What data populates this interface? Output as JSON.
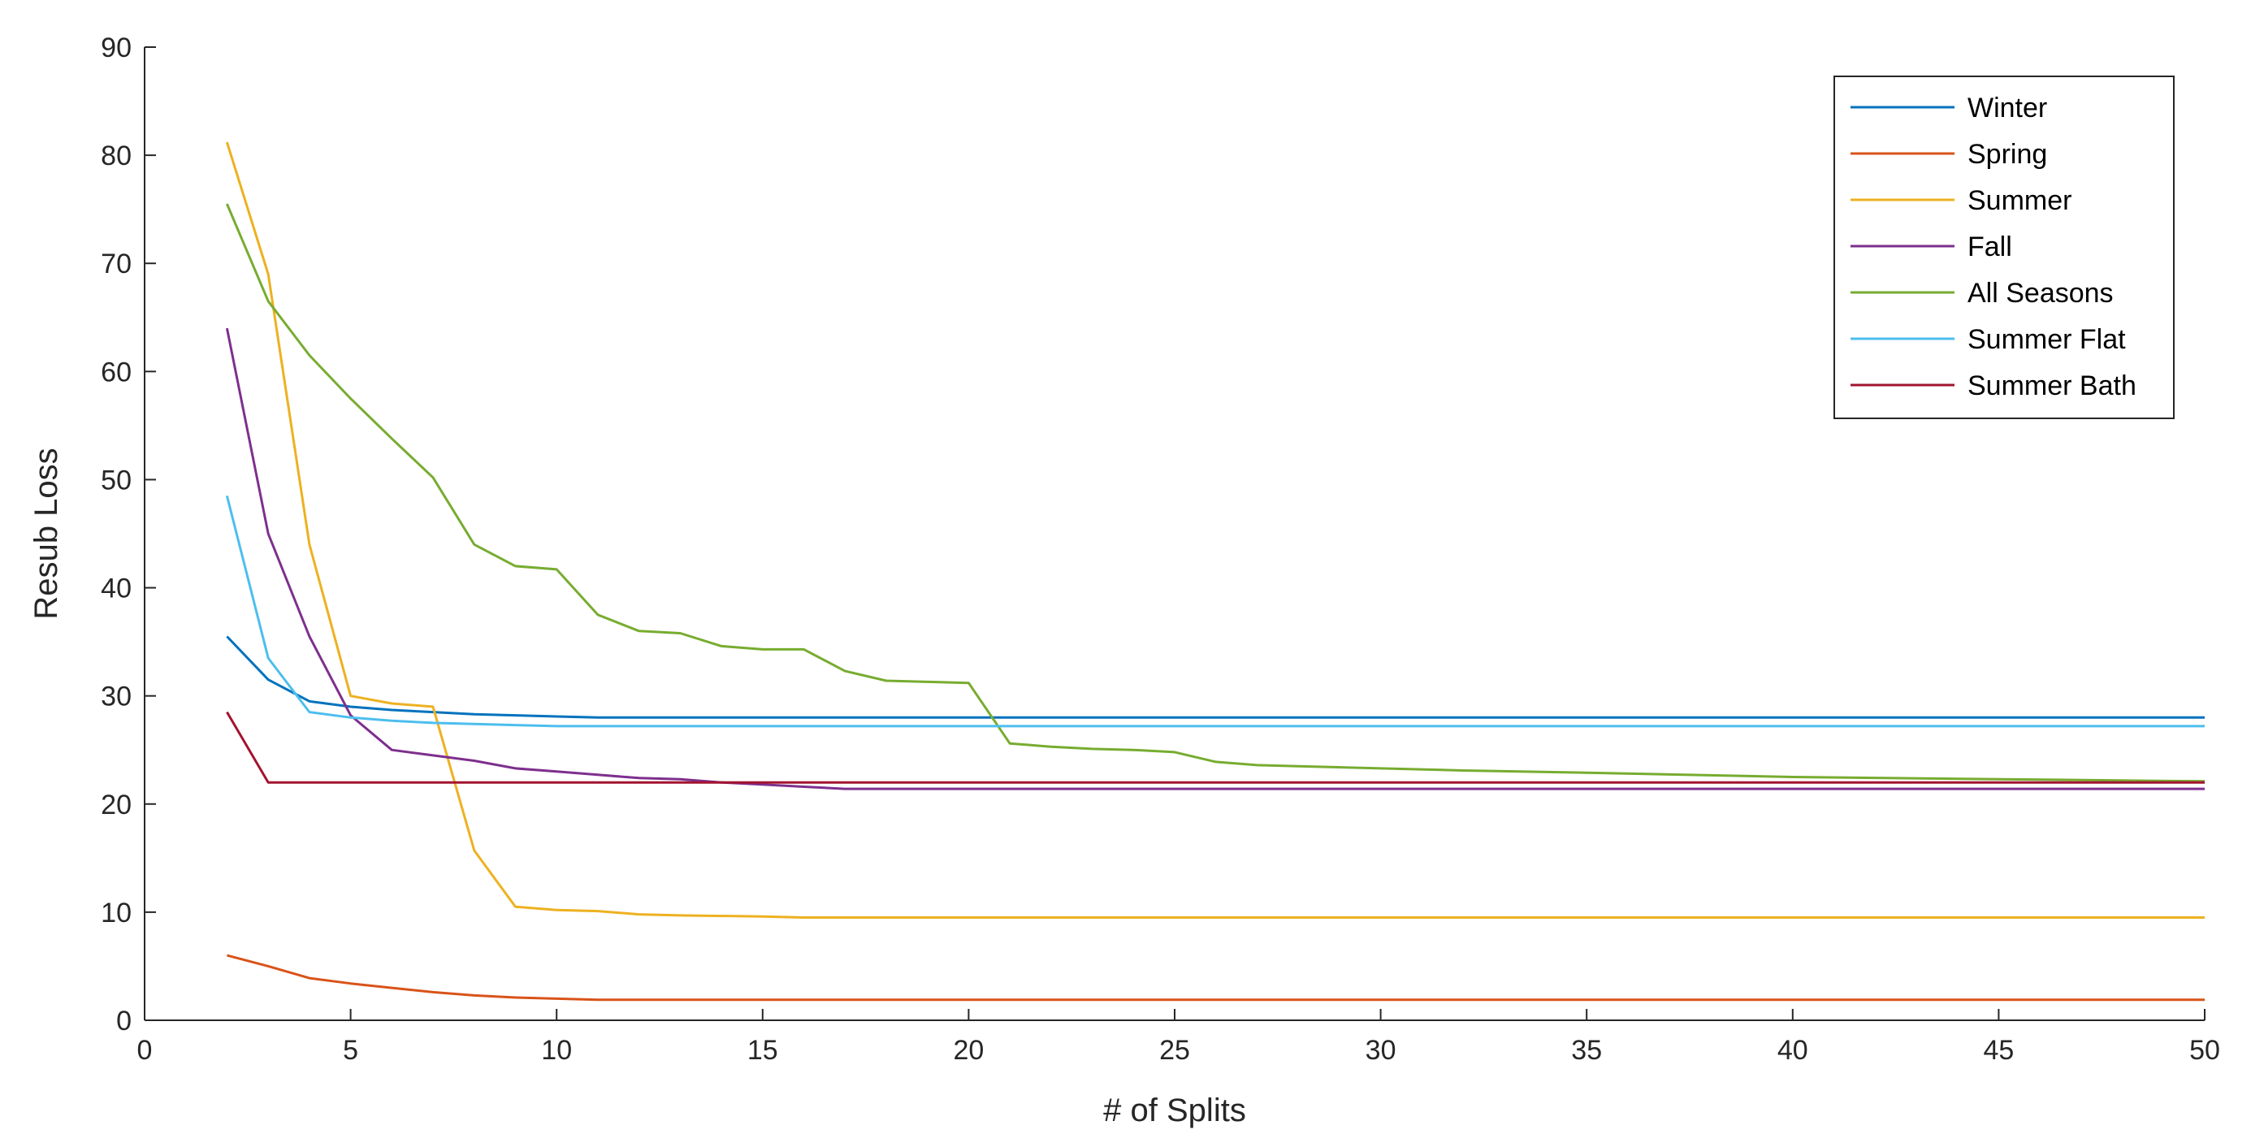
{
  "chart_data": {
    "type": "line",
    "title": "",
    "xlabel": "# of Splits",
    "ylabel": "Resub Loss",
    "xlim": [
      0,
      50
    ],
    "ylim": [
      0,
      90
    ],
    "xticks": [
      0,
      5,
      10,
      15,
      20,
      25,
      30,
      35,
      40,
      45,
      50
    ],
    "yticks": [
      0,
      10,
      20,
      30,
      40,
      50,
      60,
      70,
      80,
      90
    ],
    "grid": false,
    "legend_position": "top-right",
    "series": [
      {
        "name": "Winter",
        "color": "#0072BD",
        "points": [
          [
            2,
            35.5
          ],
          [
            3,
            31.5
          ],
          [
            4,
            29.5
          ],
          [
            5,
            29
          ],
          [
            6,
            28.7
          ],
          [
            7,
            28.5
          ],
          [
            8,
            28.3
          ],
          [
            9,
            28.2
          ],
          [
            10,
            28.1
          ],
          [
            11,
            28
          ],
          [
            12,
            28
          ],
          [
            15,
            28
          ],
          [
            20,
            28
          ],
          [
            25,
            28
          ],
          [
            30,
            28
          ],
          [
            35,
            28
          ],
          [
            40,
            28
          ],
          [
            45,
            28
          ],
          [
            50,
            28
          ]
        ]
      },
      {
        "name": "Spring",
        "color": "#D95319",
        "points": [
          [
            2,
            6
          ],
          [
            3,
            5
          ],
          [
            4,
            3.9
          ],
          [
            5,
            3.4
          ],
          [
            6,
            3
          ],
          [
            7,
            2.6
          ],
          [
            8,
            2.3
          ],
          [
            9,
            2.1
          ],
          [
            10,
            2
          ],
          [
            11,
            1.9
          ],
          [
            12,
            1.9
          ],
          [
            15,
            1.9
          ],
          [
            20,
            1.9
          ],
          [
            25,
            1.9
          ],
          [
            30,
            1.9
          ],
          [
            35,
            1.9
          ],
          [
            40,
            1.9
          ],
          [
            45,
            1.9
          ],
          [
            50,
            1.9
          ]
        ]
      },
      {
        "name": "Summer",
        "color": "#EDB120",
        "points": [
          [
            2,
            81.2
          ],
          [
            3,
            69
          ],
          [
            4,
            44
          ],
          [
            5,
            30
          ],
          [
            6,
            29.3
          ],
          [
            7,
            29
          ],
          [
            8,
            15.7
          ],
          [
            9,
            10.5
          ],
          [
            10,
            10.2
          ],
          [
            11,
            10.1
          ],
          [
            12,
            9.8
          ],
          [
            13,
            9.7
          ],
          [
            15,
            9.6
          ],
          [
            16,
            9.5
          ],
          [
            20,
            9.5
          ],
          [
            25,
            9.5
          ],
          [
            30,
            9.5
          ],
          [
            35,
            9.5
          ],
          [
            40,
            9.5
          ],
          [
            45,
            9.5
          ],
          [
            50,
            9.5
          ]
        ]
      },
      {
        "name": "Fall",
        "color": "#7E2F8E",
        "points": [
          [
            2,
            64
          ],
          [
            3,
            45
          ],
          [
            4,
            35.5
          ],
          [
            5,
            28.2
          ],
          [
            6,
            25
          ],
          [
            7,
            24.5
          ],
          [
            8,
            24
          ],
          [
            9,
            23.3
          ],
          [
            10,
            23
          ],
          [
            11,
            22.7
          ],
          [
            12,
            22.4
          ],
          [
            13,
            22.3
          ],
          [
            14,
            22
          ],
          [
            15,
            21.8
          ],
          [
            16,
            21.6
          ],
          [
            17,
            21.4
          ],
          [
            20,
            21.4
          ],
          [
            25,
            21.4
          ],
          [
            30,
            21.4
          ],
          [
            35,
            21.4
          ],
          [
            40,
            21.4
          ],
          [
            45,
            21.4
          ],
          [
            50,
            21.4
          ]
        ]
      },
      {
        "name": "All Seasons",
        "color": "#77AC30",
        "points": [
          [
            2,
            75.5
          ],
          [
            3,
            66.5
          ],
          [
            4,
            61.5
          ],
          [
            5,
            57.5
          ],
          [
            6,
            53.8
          ],
          [
            7,
            50.2
          ],
          [
            8,
            44
          ],
          [
            9,
            42
          ],
          [
            10,
            41.7
          ],
          [
            11,
            37.5
          ],
          [
            12,
            36
          ],
          [
            13,
            35.8
          ],
          [
            14,
            34.6
          ],
          [
            15,
            34.3
          ],
          [
            16,
            34.3
          ],
          [
            17,
            32.3
          ],
          [
            18,
            31.4
          ],
          [
            19,
            31.3
          ],
          [
            20,
            31.2
          ],
          [
            21,
            25.6
          ],
          [
            22,
            25.3
          ],
          [
            23,
            25.1
          ],
          [
            24,
            25
          ],
          [
            25,
            24.8
          ],
          [
            26,
            23.9
          ],
          [
            27,
            23.6
          ],
          [
            28,
            23.5
          ],
          [
            30,
            23.3
          ],
          [
            32,
            23.1
          ],
          [
            35,
            22.9
          ],
          [
            40,
            22.5
          ],
          [
            45,
            22.3
          ],
          [
            50,
            22.1
          ]
        ]
      },
      {
        "name": "Summer Flat",
        "color": "#4DBEEE",
        "points": [
          [
            2,
            48.5
          ],
          [
            3,
            33.5
          ],
          [
            4,
            28.5
          ],
          [
            5,
            28
          ],
          [
            6,
            27.7
          ],
          [
            7,
            27.5
          ],
          [
            8,
            27.4
          ],
          [
            9,
            27.3
          ],
          [
            10,
            27.2
          ],
          [
            11,
            27.2
          ],
          [
            15,
            27.2
          ],
          [
            20,
            27.2
          ],
          [
            25,
            27.2
          ],
          [
            30,
            27.2
          ],
          [
            35,
            27.2
          ],
          [
            40,
            27.2
          ],
          [
            45,
            27.2
          ],
          [
            50,
            27.2
          ]
        ]
      },
      {
        "name": "Summer Bath",
        "color": "#A2142F",
        "points": [
          [
            2,
            28.5
          ],
          [
            3,
            22
          ],
          [
            4,
            22
          ],
          [
            10,
            22
          ],
          [
            20,
            22
          ],
          [
            30,
            22
          ],
          [
            40,
            22
          ],
          [
            50,
            22
          ]
        ]
      }
    ]
  }
}
